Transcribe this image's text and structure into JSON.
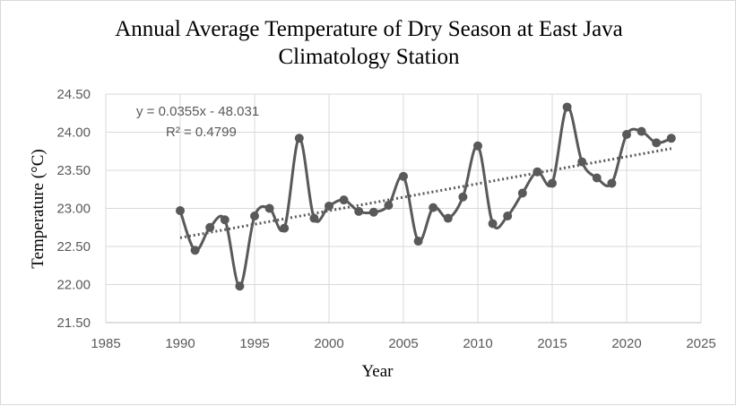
{
  "chart_data": {
    "type": "line",
    "title_line1": "Annual Average  Temperature of Dry Season at East Java",
    "title_line2": "Climatology Station",
    "xlabel": "Year",
    "ylabel": "Temperature (°C)",
    "xlim": [
      1985,
      2025
    ],
    "ylim": [
      21.5,
      24.5
    ],
    "xticks": [
      "1985",
      "1990",
      "1995",
      "2000",
      "2005",
      "2010",
      "2015",
      "2020",
      "2025"
    ],
    "yticks": [
      "21.50",
      "22.00",
      "22.50",
      "23.00",
      "23.50",
      "24.00",
      "24.50"
    ],
    "grid": "vertical and horizontal",
    "series": [
      {
        "style": "smoothed line with circle markers",
        "color": "#595959",
        "x": [
          1990,
          1991,
          1992,
          1993,
          1994,
          1995,
          1996,
          1997,
          1998,
          1999,
          2000,
          2001,
          2002,
          2003,
          2004,
          2005,
          2006,
          2007,
          2008,
          2009,
          2010,
          2011,
          2012,
          2013,
          2014,
          2015,
          2016,
          2017,
          2018,
          2019,
          2020,
          2021,
          2022,
          2023
        ],
        "y": [
          22.97,
          22.45,
          22.75,
          22.85,
          21.98,
          22.9,
          23.0,
          22.74,
          23.92,
          22.87,
          23.03,
          23.11,
          22.96,
          22.95,
          23.04,
          23.42,
          22.57,
          23.01,
          22.87,
          23.15,
          23.82,
          22.8,
          22.9,
          23.2,
          23.48,
          23.33,
          24.33,
          23.61,
          23.4,
          23.33,
          23.97,
          24.01,
          23.86,
          23.92
        ]
      }
    ],
    "trendline": {
      "type": "linear",
      "style": "dotted",
      "slope": 0.0355,
      "intercept": -48.031,
      "equation": "y = 0.0355x - 48.031",
      "r2_label": "R² = 0.4799",
      "x_range": [
        1990,
        2023
      ]
    }
  }
}
